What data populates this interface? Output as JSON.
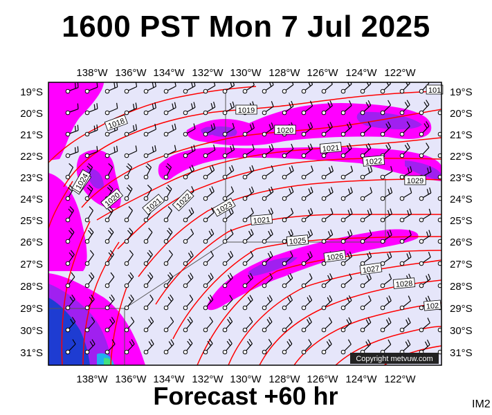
{
  "header": {
    "title": "1600 PST Mon 7 Jul 2025"
  },
  "footer": {
    "forecast_label": "Forecast +60 hr",
    "image_id_label": "IM2"
  },
  "map": {
    "lon_ticks": [
      "138°W",
      "136°W",
      "134°W",
      "132°W",
      "130°W",
      "128°W",
      "126°W",
      "124°W",
      "122°W"
    ],
    "lat_ticks": [
      "19°S",
      "20°S",
      "21°S",
      "22°S",
      "23°S",
      "24°S",
      "25°S",
      "26°S",
      "27°S",
      "28°S",
      "29°S",
      "30°S",
      "31°S"
    ],
    "isobar_labels": [
      "1018",
      "1019",
      "1019",
      "1020",
      "1020",
      "1021",
      "1021",
      "1021",
      "1022",
      "1022",
      "1023",
      "1024",
      "1025",
      "1026",
      "1027",
      "1028",
      "1029",
      "101",
      "102"
    ],
    "copyright": "Copyright metvuw.com",
    "colors": {
      "background": "#e6e6fa",
      "rain_light": "#ff00ff",
      "rain_medium": "#a020f0",
      "rain_heavy": "#1e3cd2",
      "isobar": "#ff0000"
    }
  }
}
